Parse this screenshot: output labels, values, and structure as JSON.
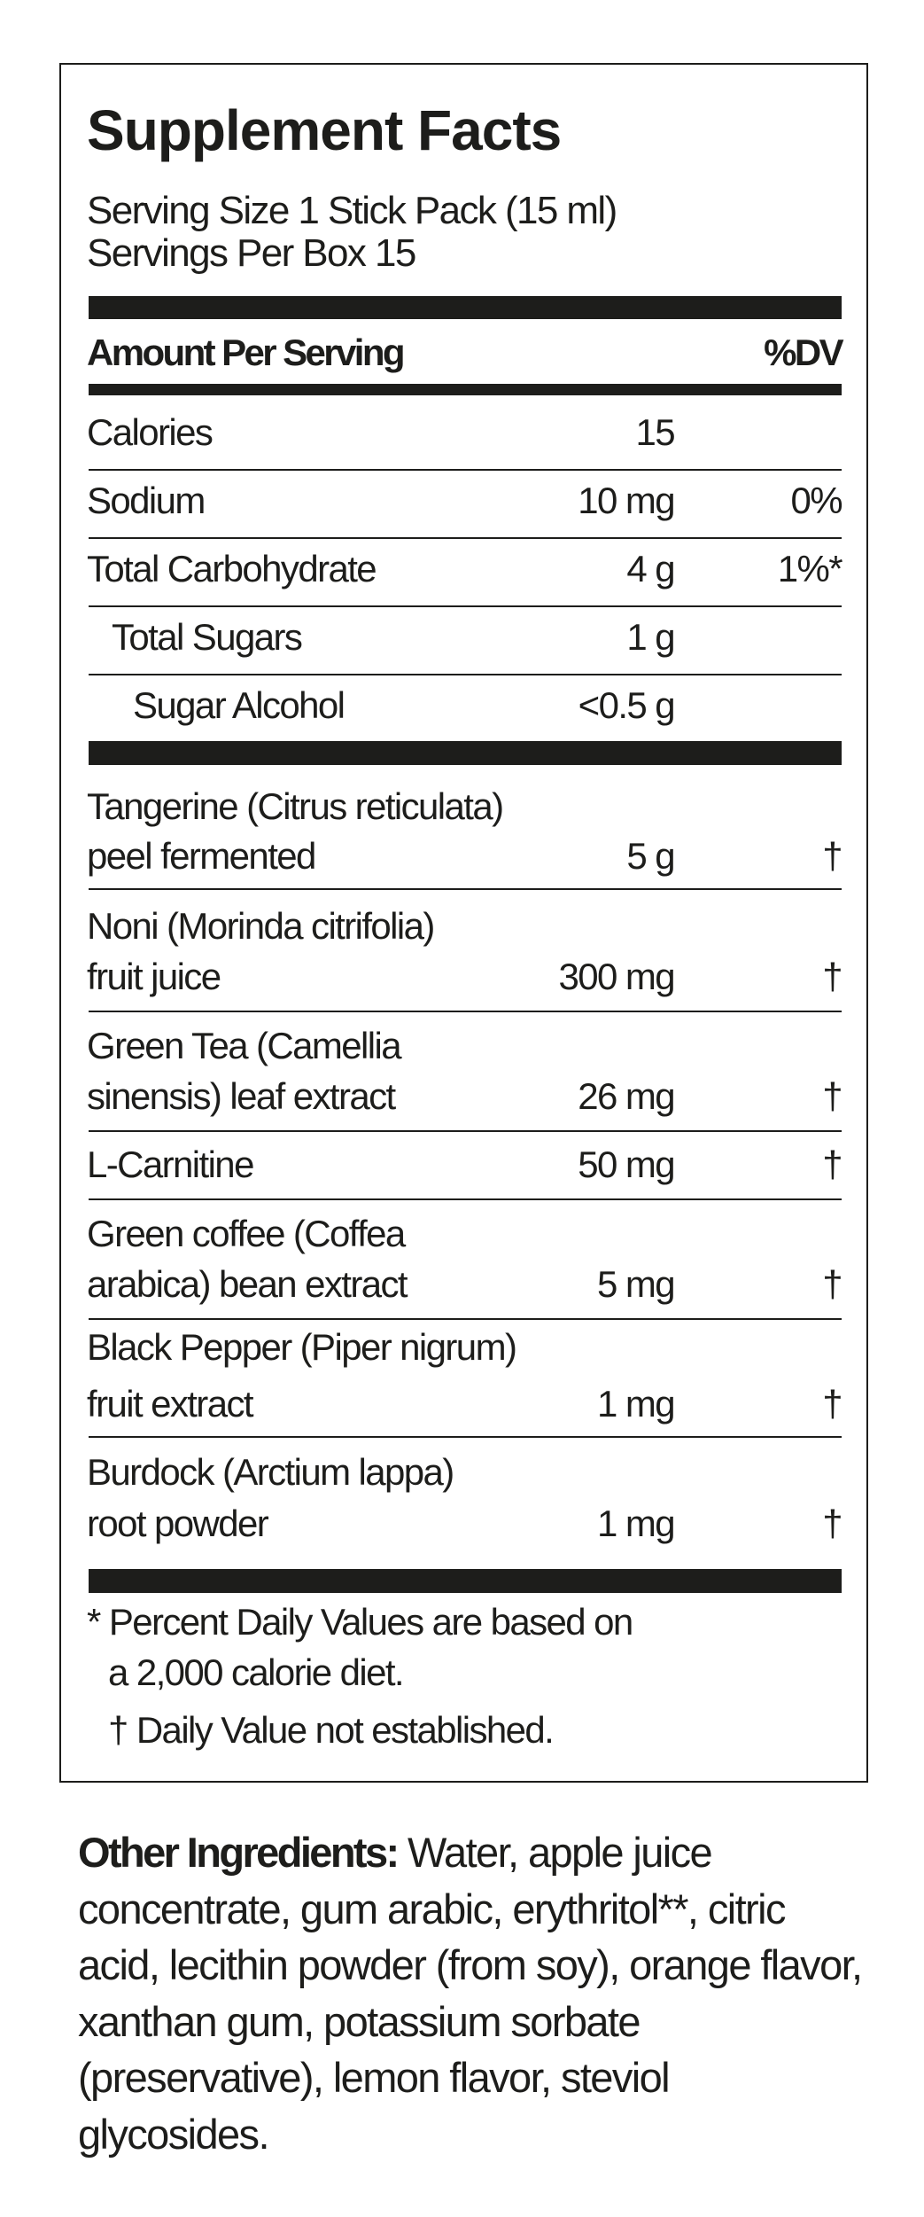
{
  "title": "Supplement Facts",
  "serving_size": "Serving Size 1 Stick Pack (15 ml)",
  "servings_per": "Servings Per Box 15",
  "header": {
    "amount": "Amount Per Serving",
    "dv": "%DV"
  },
  "nutrients": [
    {
      "name": "Calories",
      "amount": "15",
      "dv": ""
    },
    {
      "name": "Sodium",
      "amount": "10 mg",
      "dv": "0%"
    },
    {
      "name": "Total Carbohydrate",
      "amount": "4 g",
      "dv": "1%*"
    },
    {
      "name": "Total Sugars",
      "amount": "1 g",
      "dv": ""
    },
    {
      "name": "Sugar Alcohol",
      "amount": "<0.5 g",
      "dv": ""
    }
  ],
  "ingredients": [
    {
      "line1": "Tangerine (Citrus reticulata)",
      "line2": "peel fermented",
      "amount": "5 g",
      "dv": "†"
    },
    {
      "line1": "Noni (Morinda citrifolia)",
      "line2": "fruit juice",
      "amount": "300 mg",
      "dv": "†"
    },
    {
      "line1": "Green Tea (Camellia",
      "line2": "sinensis) leaf extract",
      "amount": "26 mg",
      "dv": "†"
    },
    {
      "line1": "L-Carnitine",
      "amount": "50 mg",
      "dv": "†"
    },
    {
      "line1": "Green coffee (Coffea",
      "line2": "arabica) bean extract",
      "amount": "5 mg",
      "dv": "†"
    },
    {
      "line1": "Black Pepper (Piper nigrum)",
      "line2": "fruit extract",
      "amount": "1 mg",
      "dv": "†"
    },
    {
      "line1": "Burdock (Arctium lappa)",
      "line2": "root powder",
      "amount": "1 mg",
      "dv": "†"
    }
  ],
  "footnotes": {
    "percent_line1": "* Percent Daily Values are based on",
    "percent_line2": "a 2,000 calorie diet.",
    "dagger": "† Daily Value not established."
  },
  "other_ingredients": {
    "label": "Other Ingredients:",
    "text": " Water, apple juice concentrate, gum arabic, erythritol**, citric acid, lecithin powder (from soy), orange flavor, xanthan gum, potassium sorbate (preservative), lemon flavor, steviol glycosides."
  }
}
